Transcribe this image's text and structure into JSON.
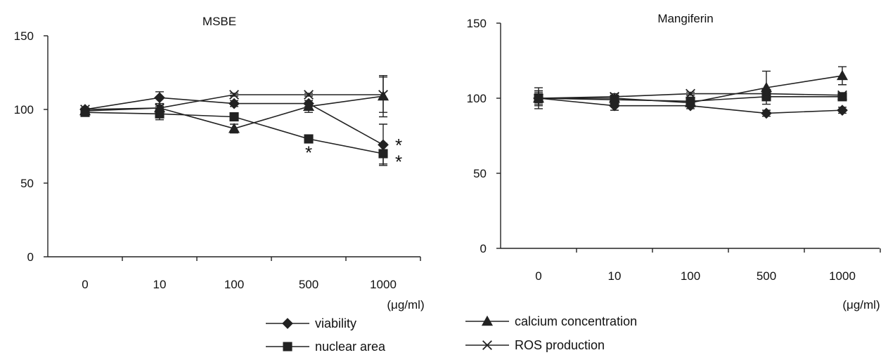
{
  "chart_data": [
    {
      "type": "line",
      "title": "MSBE",
      "categories": [
        "0",
        "10",
        "100",
        "500",
        "1000"
      ],
      "x_unit": "(μg/ml)",
      "ylim": [
        0,
        150
      ],
      "yticks": [
        0,
        50,
        100,
        150
      ],
      "grid": false,
      "legend_position": "bottom",
      "series": [
        {
          "name": "viability",
          "marker": "diamond",
          "values": [
            100,
            108,
            104,
            104,
            76
          ],
          "err": [
            1,
            4,
            2,
            2,
            14
          ]
        },
        {
          "name": "nuclear area",
          "marker": "square",
          "values": [
            98,
            97,
            95,
            80,
            70
          ],
          "err": [
            2,
            4,
            2,
            2,
            7
          ]
        },
        {
          "name": "calcium concentration",
          "marker": "triangle",
          "values": [
            99,
            101,
            87,
            102,
            109
          ],
          "err": [
            1,
            2,
            3,
            4,
            14
          ]
        },
        {
          "name": "ROS production",
          "marker": "x",
          "values": [
            100,
            101,
            110,
            110,
            110
          ],
          "err": [
            1,
            1,
            1,
            1,
            12
          ]
        }
      ],
      "annotations": [
        {
          "category": "500",
          "value": 73,
          "text": "*"
        },
        {
          "category": "1000",
          "value": 78,
          "text": "*"
        },
        {
          "category": "1000",
          "value": 67,
          "text": "*"
        }
      ]
    },
    {
      "type": "line",
      "title": "Mangiferin",
      "categories": [
        "0",
        "10",
        "100",
        "500",
        "1000"
      ],
      "x_unit": "(μg/ml)",
      "ylim": [
        0,
        150
      ],
      "yticks": [
        0,
        50,
        100,
        150
      ],
      "grid": false,
      "legend_position": "bottom",
      "series": [
        {
          "name": "viability",
          "marker": "diamond",
          "values": [
            100,
            95,
            95,
            90,
            92
          ],
          "err": [
            5,
            3,
            2,
            2,
            2
          ]
        },
        {
          "name": "nuclear area",
          "marker": "square",
          "values": [
            100,
            99,
            98,
            101,
            101
          ],
          "err": [
            4,
            2,
            1,
            2,
            1
          ]
        },
        {
          "name": "calcium concentration",
          "marker": "triangle",
          "values": [
            100,
            100,
            97,
            107,
            115
          ],
          "err": [
            3,
            2,
            1,
            11,
            6
          ]
        },
        {
          "name": "ROS production",
          "marker": "x",
          "values": [
            100,
            101,
            103,
            103,
            102
          ],
          "err": [
            7,
            2,
            1,
            1,
            1
          ]
        }
      ],
      "annotations": []
    }
  ],
  "legend": [
    {
      "label": "viability",
      "marker": "diamond"
    },
    {
      "label": "calcium concentration",
      "marker": "triangle"
    },
    {
      "label": "nuclear area",
      "marker": "square"
    },
    {
      "label": "ROS production",
      "marker": "x"
    }
  ]
}
